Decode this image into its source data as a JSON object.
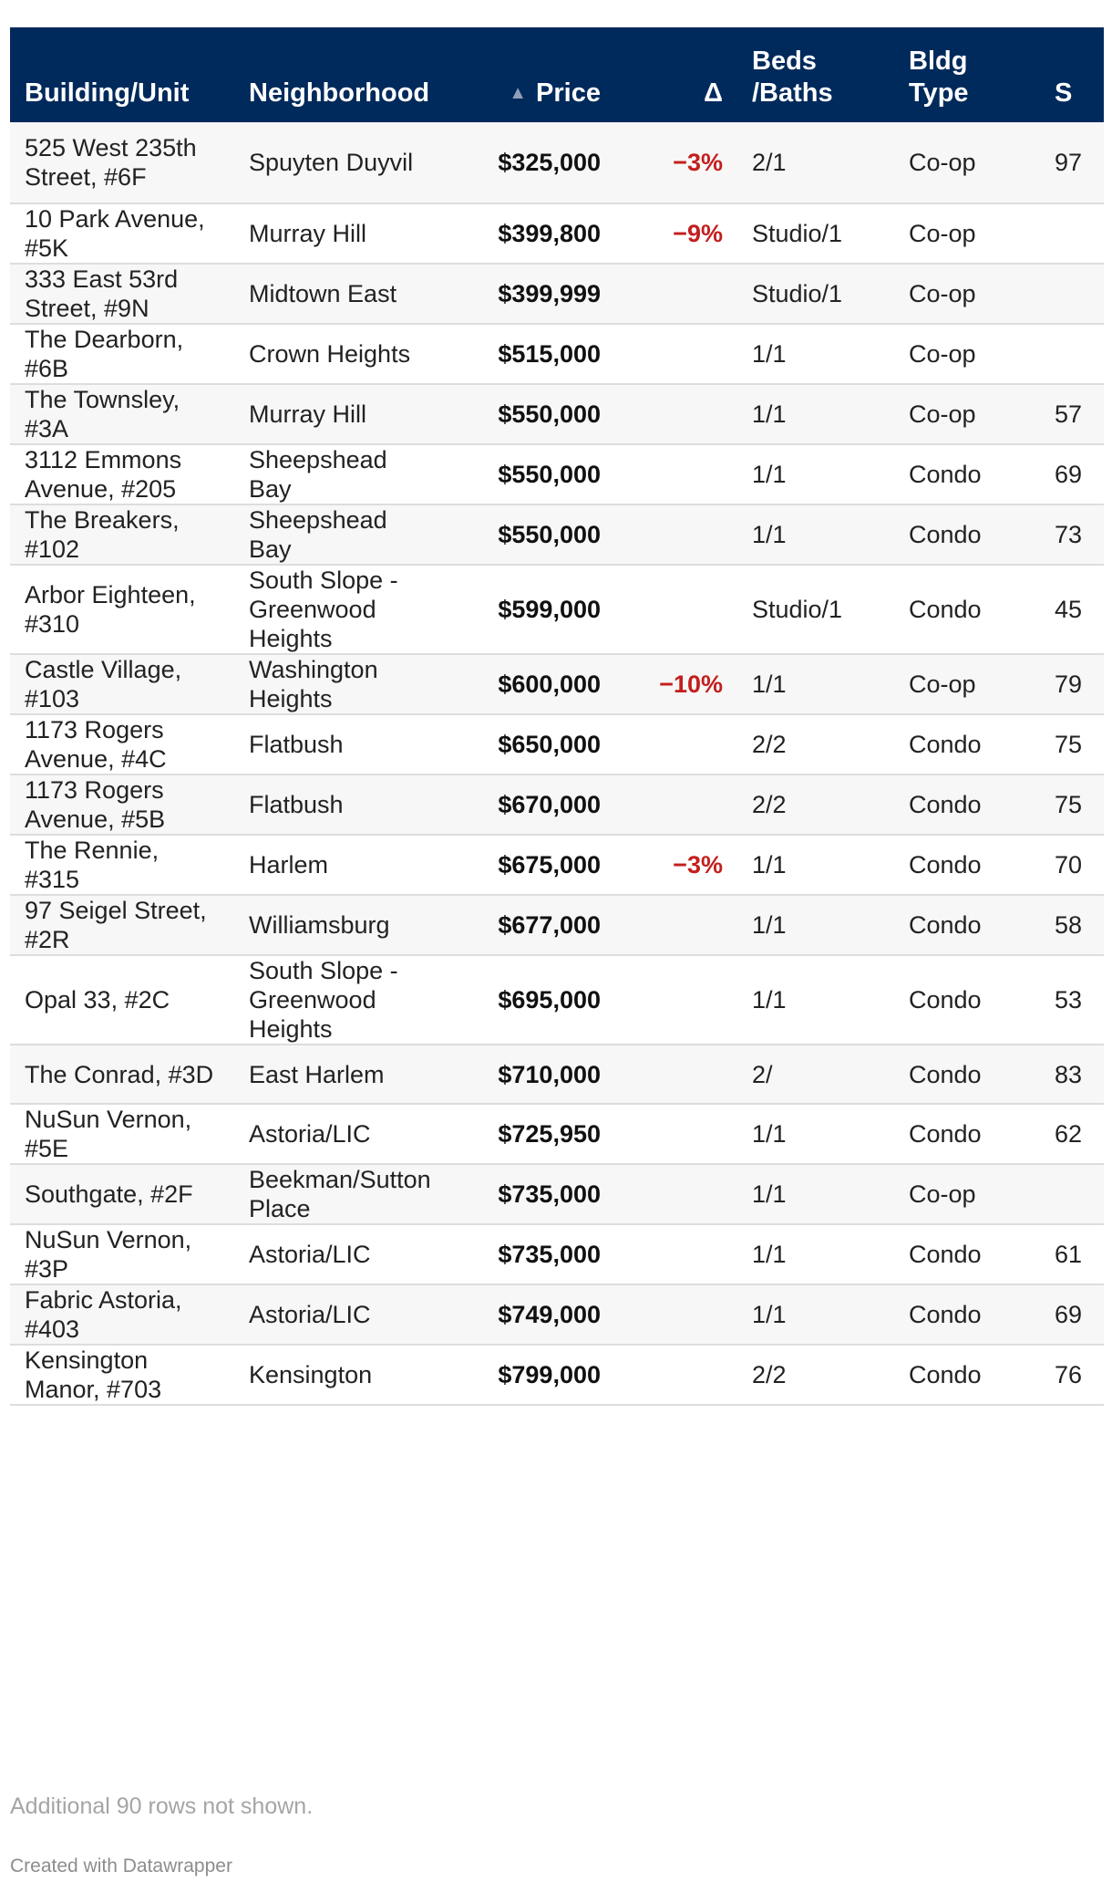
{
  "chart_data": {
    "type": "table",
    "sort": {
      "column": "Price",
      "direction": "ascending"
    },
    "columns": [
      "Building/Unit",
      "Neighborhood",
      "Price",
      "Δ",
      "Beds /Baths",
      "Bldg Type",
      "S"
    ],
    "header": {
      "building": "Building/Unit",
      "neighborhood": "Neighborhood",
      "price": "Price",
      "delta": "Δ",
      "beds_line1": "Beds",
      "beds_line2": "/Baths",
      "type_line1": "Bldg",
      "type_line2": "Type",
      "sqft": "S"
    },
    "rows": [
      {
        "building": "525 West 235th Street, #6F",
        "neighborhood": "Spuyten Duyvil",
        "price": "$325,000",
        "delta": "−3%",
        "beds": "2/1",
        "type": "Co-op",
        "sqft": "97"
      },
      {
        "building": "10 Park Avenue, #5K",
        "neighborhood": "Murray Hill",
        "price": "$399,800",
        "delta": "−9%",
        "beds": "Studio/1",
        "type": "Co-op",
        "sqft": ""
      },
      {
        "building": "333 East 53rd Street, #9N",
        "neighborhood": "Midtown East",
        "price": "$399,999",
        "delta": "",
        "beds": "Studio/1",
        "type": "Co-op",
        "sqft": ""
      },
      {
        "building": "The Dearborn, #6B",
        "neighborhood": "Crown Heights",
        "price": "$515,000",
        "delta": "",
        "beds": "1/1",
        "type": "Co-op",
        "sqft": ""
      },
      {
        "building": "The Townsley, #3A",
        "neighborhood": "Murray Hill",
        "price": "$550,000",
        "delta": "",
        "beds": "1/1",
        "type": "Co-op",
        "sqft": "57"
      },
      {
        "building": "3112 Emmons Avenue, #205",
        "neighborhood": "Sheepshead Bay",
        "price": "$550,000",
        "delta": "",
        "beds": "1/1",
        "type": "Condo",
        "sqft": "69"
      },
      {
        "building": "The Breakers, #102",
        "neighborhood": "Sheepshead Bay",
        "price": "$550,000",
        "delta": "",
        "beds": "1/1",
        "type": "Condo",
        "sqft": "73"
      },
      {
        "building": "Arbor Eighteen, #310",
        "neighborhood": "South Slope - Greenwood Heights",
        "price": "$599,000",
        "delta": "",
        "beds": "Studio/1",
        "type": "Condo",
        "sqft": "45"
      },
      {
        "building": "Castle Village, #103",
        "neighborhood": "Washington Heights",
        "price": "$600,000",
        "delta": "−10%",
        "beds": "1/1",
        "type": "Co-op",
        "sqft": "79"
      },
      {
        "building": "1173 Rogers Avenue, #4C",
        "neighborhood": "Flatbush",
        "price": "$650,000",
        "delta": "",
        "beds": "2/2",
        "type": "Condo",
        "sqft": "75"
      },
      {
        "building": "1173 Rogers Avenue, #5B",
        "neighborhood": "Flatbush",
        "price": "$670,000",
        "delta": "",
        "beds": "2/2",
        "type": "Condo",
        "sqft": "75"
      },
      {
        "building": "The Rennie, #315",
        "neighborhood": "Harlem",
        "price": "$675,000",
        "delta": "−3%",
        "beds": "1/1",
        "type": "Condo",
        "sqft": "70"
      },
      {
        "building": "97 Seigel Street, #2R",
        "neighborhood": "Williamsburg",
        "price": "$677,000",
        "delta": "",
        "beds": "1/1",
        "type": "Condo",
        "sqft": "58"
      },
      {
        "building": "Opal 33, #2C",
        "neighborhood": "South Slope - Greenwood Heights",
        "price": "$695,000",
        "delta": "",
        "beds": "1/1",
        "type": "Condo",
        "sqft": "53"
      },
      {
        "building": "The Conrad, #3D",
        "neighborhood": "East Harlem",
        "price": "$710,000",
        "delta": "",
        "beds": "2/",
        "type": "Condo",
        "sqft": "83"
      },
      {
        "building": "NuSun Vernon, #5E",
        "neighborhood": "Astoria/LIC",
        "price": "$725,950",
        "delta": "",
        "beds": "1/1",
        "type": "Condo",
        "sqft": "62"
      },
      {
        "building": "Southgate, #2F",
        "neighborhood": "Beekman/Sutton Place",
        "price": "$735,000",
        "delta": "",
        "beds": "1/1",
        "type": "Co-op",
        "sqft": ""
      },
      {
        "building": "NuSun Vernon, #3P",
        "neighborhood": "Astoria/LIC",
        "price": "$735,000",
        "delta": "",
        "beds": "1/1",
        "type": "Condo",
        "sqft": "61"
      },
      {
        "building": "Fabric Astoria, #403",
        "neighborhood": "Astoria/LIC",
        "price": "$749,000",
        "delta": "",
        "beds": "1/1",
        "type": "Condo",
        "sqft": "69"
      },
      {
        "building": "Kensington Manor, #703",
        "neighborhood": "Kensington",
        "price": "$799,000",
        "delta": "",
        "beds": "2/2",
        "type": "Condo",
        "sqft": "76"
      }
    ]
  },
  "colors": {
    "header_background": "#002a5c",
    "header_text": "#ffffff",
    "negative_delta": "#c41e1e",
    "row_stripe": "#f7f7f7"
  },
  "icons": {
    "sort": "triangle-up-icon"
  },
  "footer": {
    "note": "Additional 90 rows not shown.",
    "credit": "Created with Datawrapper"
  }
}
